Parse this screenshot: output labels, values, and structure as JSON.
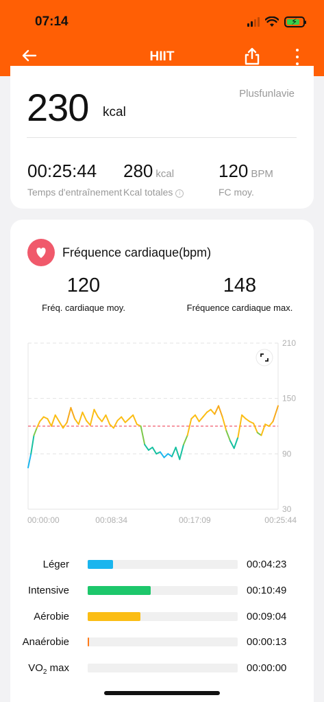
{
  "status_bar": {
    "time": "07:14"
  },
  "header": {
    "title": "HIIT",
    "back_icon": "arrow-left-icon",
    "share_icon": "share-icon",
    "more_icon": "more-vertical-icon"
  },
  "summary": {
    "calories_value": "230",
    "calories_unit": "kcal",
    "brand": "Plusfunlavie",
    "stats": [
      {
        "value": "00:25:44",
        "unit": "",
        "label": "Temps d'entraînement"
      },
      {
        "value": "280",
        "unit": "kcal",
        "label": "Kcal totales"
      },
      {
        "value": "120",
        "unit": "BPM",
        "label": "FC moy."
      }
    ]
  },
  "heart_rate": {
    "title": "Fréquence cardiaque(bpm)",
    "avg_value": "120",
    "avg_label": "Fréq. cardiaque moy.",
    "max_value": "148",
    "max_label": "Fréquence cardiaque max.",
    "colors": {
      "blue": "#1ab5ee",
      "green": "#1dc76b",
      "yellow": "#fbbd14",
      "orange": "#ff7a18",
      "avg_line": "#f0596b"
    }
  },
  "chart_data": {
    "type": "line",
    "y_ticks": [
      "210",
      "150",
      "90",
      "30"
    ],
    "x_ticks": [
      "00:00:00",
      "00:08:34",
      "00:17:09",
      "00:25:44"
    ],
    "ylim": [
      30,
      210
    ],
    "x_unit_minutes": [
      0,
      25.73
    ],
    "avg_line": 120,
    "series": [
      {
        "x": [
          0,
          0.3,
          0.6,
          0.9,
          1.2,
          1.6,
          2.0,
          2.4,
          2.8,
          3.2,
          3.6,
          4.0,
          4.4,
          4.8,
          5.2,
          5.6,
          6.0,
          6.4,
          6.8,
          7.2,
          7.6,
          8.0,
          8.4,
          8.8,
          9.2,
          9.6,
          10.0,
          10.4,
          10.8,
          11.2,
          11.6,
          12.0,
          12.4,
          12.8,
          13.2,
          13.6,
          14.0,
          14.4,
          14.8,
          15.2,
          15.6,
          16.0,
          16.4,
          16.8,
          17.2,
          17.6,
          18.0,
          18.4,
          18.8,
          19.2,
          19.6,
          20.0,
          20.4,
          20.8,
          21.2,
          21.6,
          22.0,
          22.4,
          22.8,
          23.2,
          23.6,
          24.0,
          24.4,
          24.8,
          25.2,
          25.73
        ],
        "y": [
          75,
          90,
          110,
          118,
          125,
          130,
          128,
          120,
          132,
          125,
          118,
          124,
          140,
          128,
          122,
          135,
          126,
          121,
          138,
          130,
          125,
          132,
          122,
          118,
          126,
          130,
          124,
          128,
          132,
          122,
          120,
          100,
          94,
          97,
          90,
          92,
          86,
          90,
          87,
          97,
          84,
          100,
          110,
          128,
          132,
          125,
          130,
          135,
          138,
          133,
          142,
          130,
          115,
          104,
          96,
          108,
          132,
          128,
          125,
          123,
          113,
          110,
          122,
          120,
          125,
          142
        ],
        "name": ""
      }
    ]
  },
  "zones": [
    {
      "label": "Léger",
      "time": "00:04:23",
      "fraction": 0.17,
      "color": "#1ab5ee"
    },
    {
      "label": "Intensive",
      "time": "00:10:49",
      "fraction": 0.42,
      "color": "#1dc76b"
    },
    {
      "label": "Aérobie",
      "time": "00:09:04",
      "fraction": 0.35,
      "color": "#fbbd14"
    },
    {
      "label": "Anaérobie",
      "time": "00:00:13",
      "fraction": 0.01,
      "color": "#ff7a18"
    },
    {
      "label": "VO",
      "label_sub": "2",
      "label_rest": " max",
      "time": "00:00:00",
      "fraction": 0,
      "color": "#d23b3b"
    }
  ]
}
